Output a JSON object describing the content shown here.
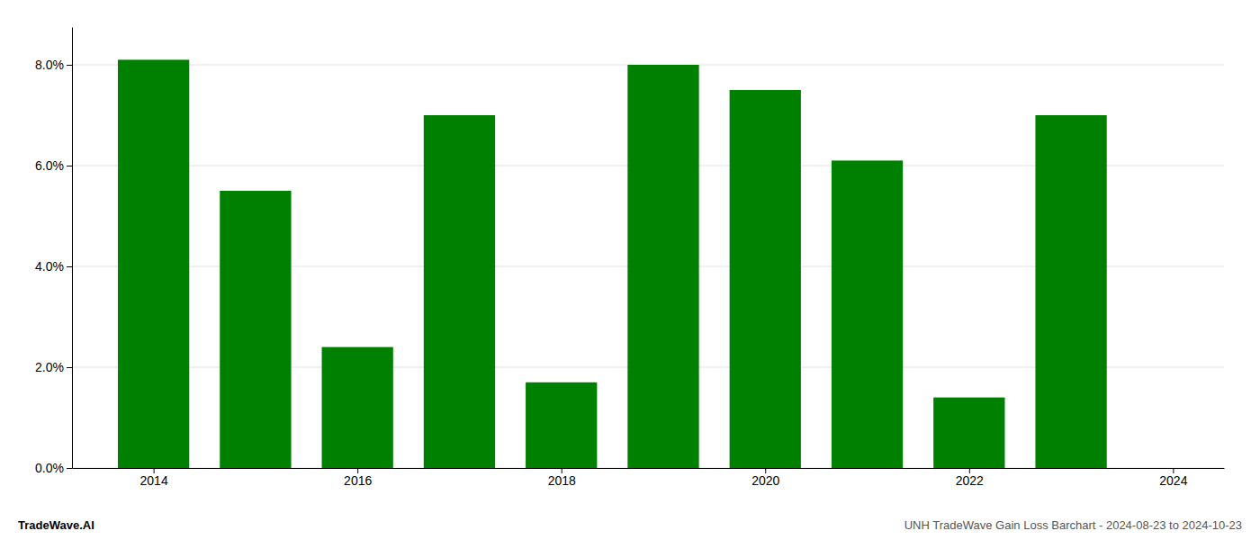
{
  "chart_data": {
    "type": "bar",
    "title": "UNH TradeWave Gain Loss Barchart - 2024-08-23 to 2024-10-23",
    "annotations": [
      "TradeWave.AI"
    ],
    "x": [
      2014,
      2015,
      2016,
      2017,
      2018,
      2019,
      2020,
      2021,
      2022,
      2023
    ],
    "values": [
      0.081,
      0.055,
      0.024,
      0.07,
      0.017,
      0.08,
      0.075,
      0.061,
      0.014,
      0.07
    ],
    "color": "#008000",
    "xlim": [
      2013.2,
      2024.5
    ],
    "xticks": [
      2014,
      2016,
      2018,
      2020,
      2022,
      2024
    ],
    "ylim": [
      0,
      0.0875
    ],
    "yticks": [
      {
        "value": 0.0,
        "label": "0.0%"
      },
      {
        "value": 0.02,
        "label": "2.0%"
      },
      {
        "value": 0.04,
        "label": "4.0%"
      },
      {
        "value": 0.06,
        "label": "6.0%"
      },
      {
        "value": 0.08,
        "label": "8.0%"
      }
    ],
    "grid": true
  }
}
